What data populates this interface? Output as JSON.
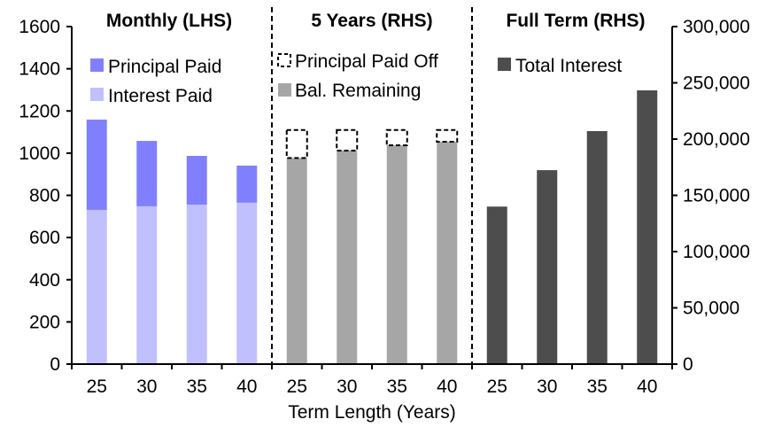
{
  "chart_data": {
    "type": "bar",
    "xlabel": "Term Length (Years)",
    "left_axis": {
      "ylim": [
        0,
        1600
      ],
      "ticks": [
        "0",
        "200",
        "400",
        "600",
        "800",
        "1000",
        "1200",
        "1400",
        "1600"
      ]
    },
    "right_axis": {
      "ylim": [
        0,
        300000
      ],
      "ticks": [
        "0",
        "50,000",
        "100,000",
        "150,000",
        "200,000",
        "250,000",
        "300,000"
      ]
    },
    "panels": [
      {
        "title": "Monthly (LHS)",
        "axis": "left",
        "categories": [
          "25",
          "30",
          "35",
          "40"
        ],
        "series": [
          {
            "name": "Interest Paid",
            "color": "#c0c0ff",
            "values": [
              731,
              748,
              756,
              765
            ]
          },
          {
            "name": "Principal Paid",
            "color": "#8080ff",
            "values": [
              428,
              310,
              231,
              176
            ]
          }
        ],
        "stacked": true
      },
      {
        "title": "5 Years (RHS)",
        "axis": "right",
        "categories": [
          "25",
          "30",
          "35",
          "40"
        ],
        "series": [
          {
            "name": "Bal. Remaining",
            "color": "#a6a6a6",
            "values": [
              183200,
              189800,
              194500,
              197600
            ]
          },
          {
            "name": "Principal Paid Off",
            "color": "none",
            "style": "dashed",
            "values": [
              24900,
              18300,
              13600,
              10500
            ]
          }
        ],
        "stacked": true
      },
      {
        "title": "Full Term (RHS)",
        "axis": "right",
        "categories": [
          "25",
          "30",
          "35",
          "40"
        ],
        "series": [
          {
            "name": "Total Interest",
            "color": "#4d4d4d",
            "values": [
              140000,
              172400,
              207100,
              243300
            ]
          }
        ]
      }
    ]
  }
}
